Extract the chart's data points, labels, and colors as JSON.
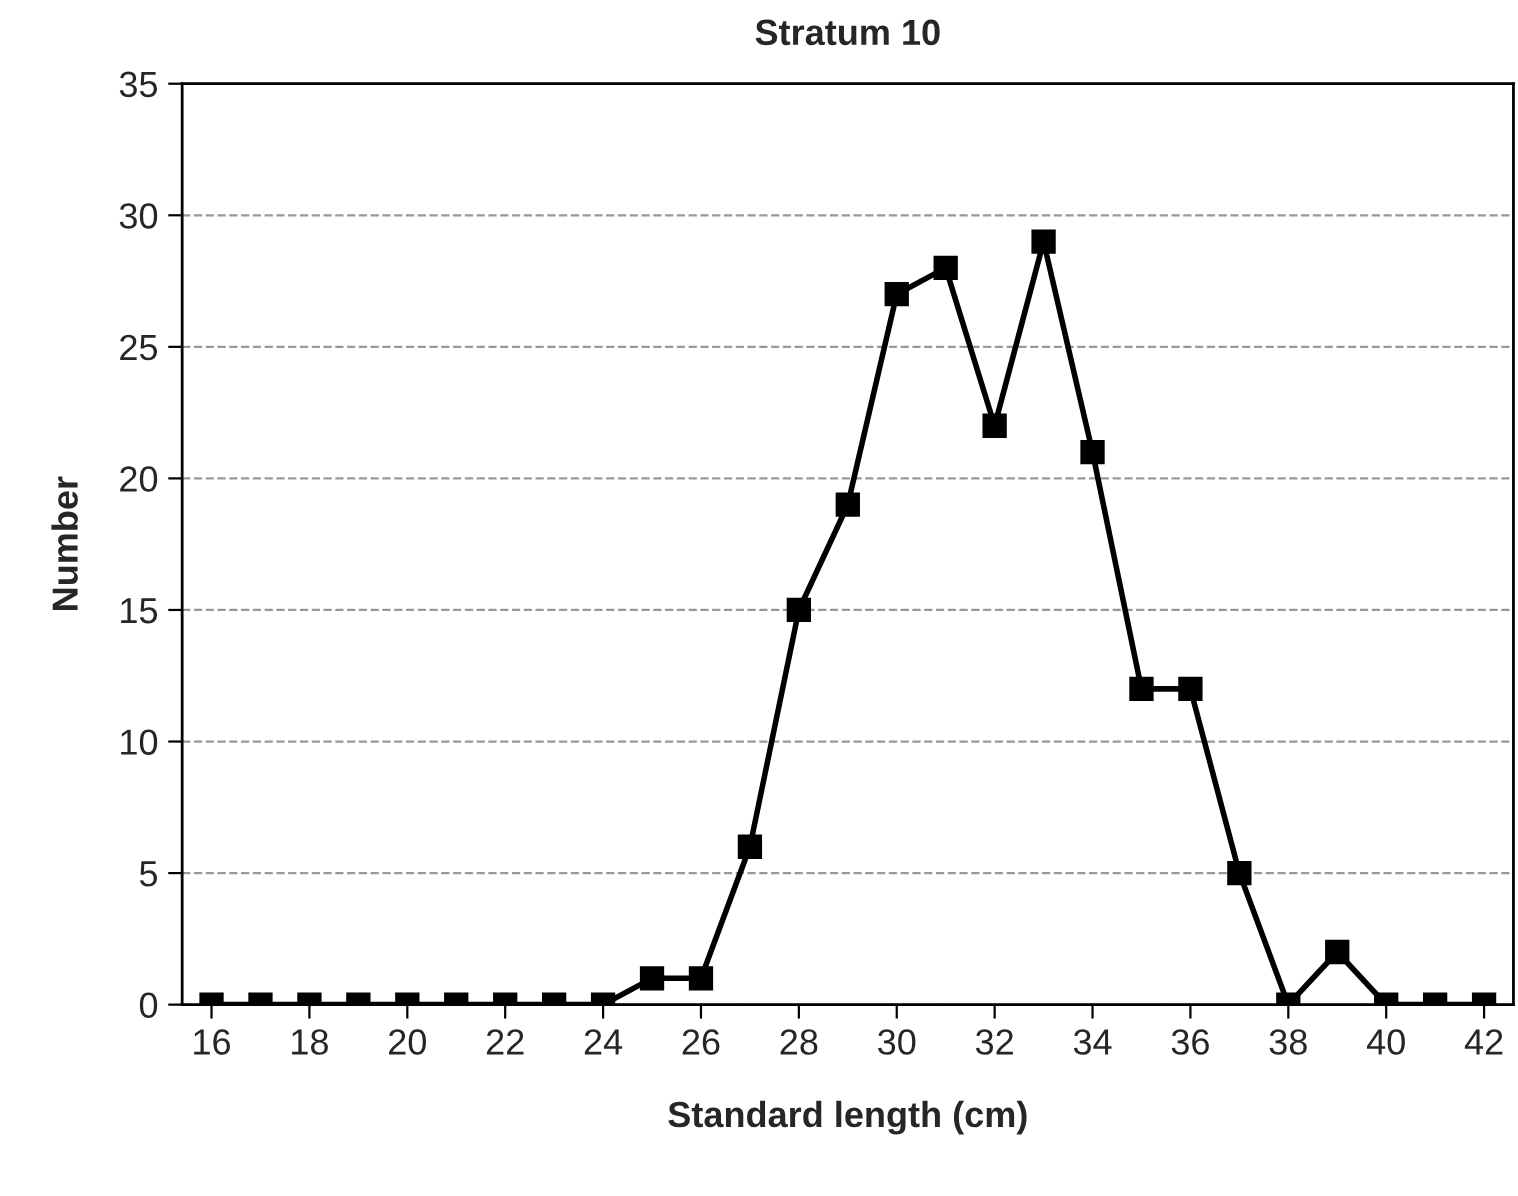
{
  "chart_data": {
    "type": "line",
    "title": "Stratum 10",
    "xlabel": "Standard length (cm)",
    "ylabel": "Number",
    "x": [
      16,
      17,
      18,
      19,
      20,
      21,
      22,
      23,
      24,
      25,
      26,
      27,
      28,
      29,
      30,
      31,
      32,
      33,
      34,
      35,
      36,
      37,
      38,
      39,
      40,
      41,
      42
    ],
    "series": [
      {
        "color": "#000000",
        "values": [
          0,
          0,
          0,
          0,
          0,
          0,
          0,
          0,
          0,
          1,
          1,
          6,
          15,
          19,
          27,
          28,
          22,
          29,
          21,
          12,
          12,
          5,
          0,
          2,
          0,
          0,
          0
        ]
      }
    ],
    "xlim": [
      15.4,
      42.6
    ],
    "xticks": [
      16,
      18,
      20,
      22,
      24,
      26,
      28,
      30,
      32,
      34,
      36,
      38,
      40,
      42
    ],
    "ylim": [
      0,
      35
    ],
    "yticks": [
      0,
      5,
      10,
      15,
      20,
      25,
      30,
      35
    ],
    "grid": "y",
    "marker": "square",
    "line_style": "solid"
  }
}
